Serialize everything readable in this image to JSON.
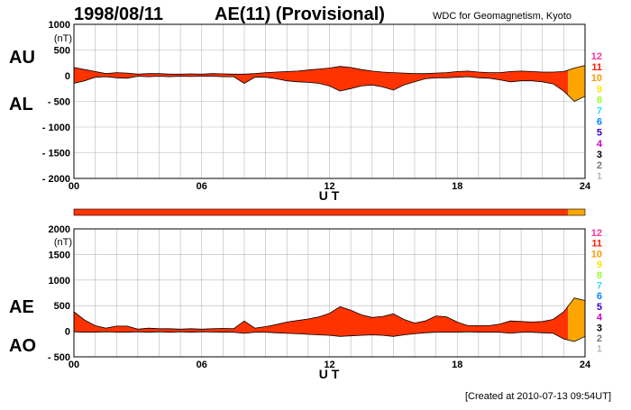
{
  "header": {
    "date": "1998/08/11",
    "title": "AE(11) (Provisional)",
    "source": "WDC for Geomagnetism, Kyoto"
  },
  "footer": {
    "created": "[Created at 2010-07-13 09:54UT]"
  },
  "legend": {
    "items": [
      {
        "label": "12",
        "color": "#ff3399"
      },
      {
        "label": "11",
        "color": "#ff1a00"
      },
      {
        "label": "10",
        "color": "#ff9900"
      },
      {
        "label": "9",
        "color": "#ffe600"
      },
      {
        "label": "8",
        "color": "#99ff33"
      },
      {
        "label": "7",
        "color": "#33ddff"
      },
      {
        "label": "6",
        "color": "#0088ff"
      },
      {
        "label": "5",
        "color": "#3300cc"
      },
      {
        "label": "4",
        "color": "#cc00cc"
      },
      {
        "label": "3",
        "color": "#000000"
      },
      {
        "label": "2",
        "color": "#777777"
      },
      {
        "label": "1",
        "color": "#bbbbbb"
      }
    ]
  },
  "station_bar": {
    "segments": [
      {
        "from": 0,
        "to": 23.2,
        "station_count": "11",
        "color": "#ff3300"
      },
      {
        "from": 23.2,
        "to": 24,
        "station_count": "10",
        "color": "#ffa500"
      }
    ]
  },
  "chart_data": [
    {
      "type": "area",
      "title": "AE(11) (Provisional)",
      "unit_label": "(nT)",
      "xlabel": "U T",
      "xlim": [
        0,
        24
      ],
      "ylim": [
        -2000,
        1000
      ],
      "xticks": [
        "00",
        "06",
        "12",
        "18",
        "24"
      ],
      "yticks": [
        "1000",
        "500",
        "0",
        "- 500",
        "- 1000",
        "- 1500",
        "- 2000"
      ],
      "side_labels": [
        "AU",
        "AL"
      ],
      "grid": true,
      "series": [
        {
          "name": "AU",
          "x": [
            0,
            0.5,
            1,
            1.5,
            2,
            2.5,
            3,
            3.5,
            4,
            4.5,
            5,
            5.5,
            6,
            6.5,
            7,
            7.5,
            8,
            8.5,
            9,
            9.5,
            10,
            10.5,
            11,
            11.5,
            12,
            12.5,
            13,
            13.5,
            14,
            14.5,
            15,
            15.5,
            16,
            16.5,
            17,
            17.5,
            18,
            18.5,
            19,
            19.5,
            20,
            20.5,
            21,
            21.5,
            22,
            22.5,
            23,
            23.5,
            24
          ],
          "values": [
            160,
            120,
            80,
            40,
            60,
            50,
            30,
            40,
            40,
            30,
            30,
            35,
            30,
            40,
            35,
            30,
            30,
            40,
            60,
            70,
            80,
            90,
            110,
            130,
            150,
            180,
            160,
            120,
            90,
            70,
            60,
            50,
            40,
            40,
            50,
            60,
            80,
            90,
            70,
            60,
            60,
            80,
            90,
            80,
            70,
            70,
            80,
            150,
            200
          ]
        },
        {
          "name": "AL",
          "x": [
            0,
            0.5,
            1,
            1.5,
            2,
            2.5,
            3,
            3.5,
            4,
            4.5,
            5,
            5.5,
            6,
            6.5,
            7,
            7.5,
            8,
            8.5,
            9,
            9.5,
            10,
            10.5,
            11,
            11.5,
            12,
            12.5,
            13,
            13.5,
            14,
            14.5,
            15,
            15.5,
            16,
            16.5,
            17,
            17.5,
            18,
            18.5,
            19,
            19.5,
            20,
            20.5,
            21,
            21.5,
            22,
            22.5,
            23,
            23.5,
            24
          ],
          "values": [
            -150,
            -100,
            -30,
            -20,
            -40,
            -50,
            -10,
            -20,
            -10,
            -20,
            -10,
            -15,
            -10,
            -10,
            -20,
            -20,
            -150,
            -30,
            -30,
            -60,
            -100,
            -120,
            -130,
            -150,
            -200,
            -300,
            -250,
            -200,
            -180,
            -220,
            -280,
            -180,
            -120,
            -60,
            -40,
            -40,
            -30,
            -20,
            -40,
            -50,
            -80,
            -120,
            -100,
            -100,
            -120,
            -160,
            -300,
            -500,
            -400
          ]
        }
      ]
    },
    {
      "type": "area",
      "title": "",
      "unit_label": "(nT)",
      "xlabel": "U T",
      "xlim": [
        0,
        24
      ],
      "ylim": [
        -500,
        2000
      ],
      "xticks": [
        "00",
        "06",
        "12",
        "18",
        "24"
      ],
      "yticks": [
        "2000",
        "1500",
        "1000",
        "500",
        "0",
        "- 500"
      ],
      "side_labels": [
        "AE",
        "AO"
      ],
      "grid": true,
      "series": [
        {
          "name": "AE",
          "x": [
            0,
            0.5,
            1,
            1.5,
            2,
            2.5,
            3,
            3.5,
            4,
            4.5,
            5,
            5.5,
            6,
            6.5,
            7,
            7.5,
            8,
            8.5,
            9,
            9.5,
            10,
            10.5,
            11,
            11.5,
            12,
            12.5,
            13,
            13.5,
            14,
            14.5,
            15,
            15.5,
            16,
            16.5,
            17,
            17.5,
            18,
            18.5,
            19,
            19.5,
            20,
            20.5,
            21,
            21.5,
            22,
            22.5,
            23,
            23.5,
            24
          ],
          "values": [
            380,
            220,
            110,
            60,
            100,
            100,
            40,
            60,
            50,
            50,
            40,
            50,
            40,
            50,
            55,
            50,
            200,
            60,
            90,
            130,
            180,
            210,
            240,
            280,
            350,
            480,
            410,
            320,
            270,
            290,
            340,
            230,
            160,
            200,
            300,
            280,
            180,
            110,
            110,
            110,
            140,
            200,
            190,
            180,
            190,
            230,
            380,
            650,
            600
          ]
        },
        {
          "name": "AO",
          "x": [
            0,
            0.5,
            1,
            1.5,
            2,
            2.5,
            3,
            3.5,
            4,
            4.5,
            5,
            5.5,
            6,
            6.5,
            7,
            7.5,
            8,
            8.5,
            9,
            9.5,
            10,
            10.5,
            11,
            11.5,
            12,
            12.5,
            13,
            13.5,
            14,
            14.5,
            15,
            15.5,
            16,
            16.5,
            17,
            17.5,
            18,
            18.5,
            19,
            19.5,
            20,
            20.5,
            21,
            21.5,
            22,
            22.5,
            23,
            23.5,
            24
          ],
          "values": [
            -10,
            -20,
            -20,
            -10,
            -20,
            -20,
            -10,
            -20,
            -10,
            -20,
            -10,
            -20,
            -10,
            -15,
            -20,
            -20,
            -40,
            -20,
            -20,
            -30,
            -40,
            -50,
            -60,
            -70,
            -80,
            -100,
            -90,
            -80,
            -70,
            -80,
            -100,
            -70,
            -50,
            -30,
            -20,
            -20,
            -20,
            -10,
            -20,
            -20,
            -20,
            -40,
            -20,
            -20,
            -30,
            -40,
            -150,
            -200,
            -100
          ]
        }
      ]
    }
  ]
}
